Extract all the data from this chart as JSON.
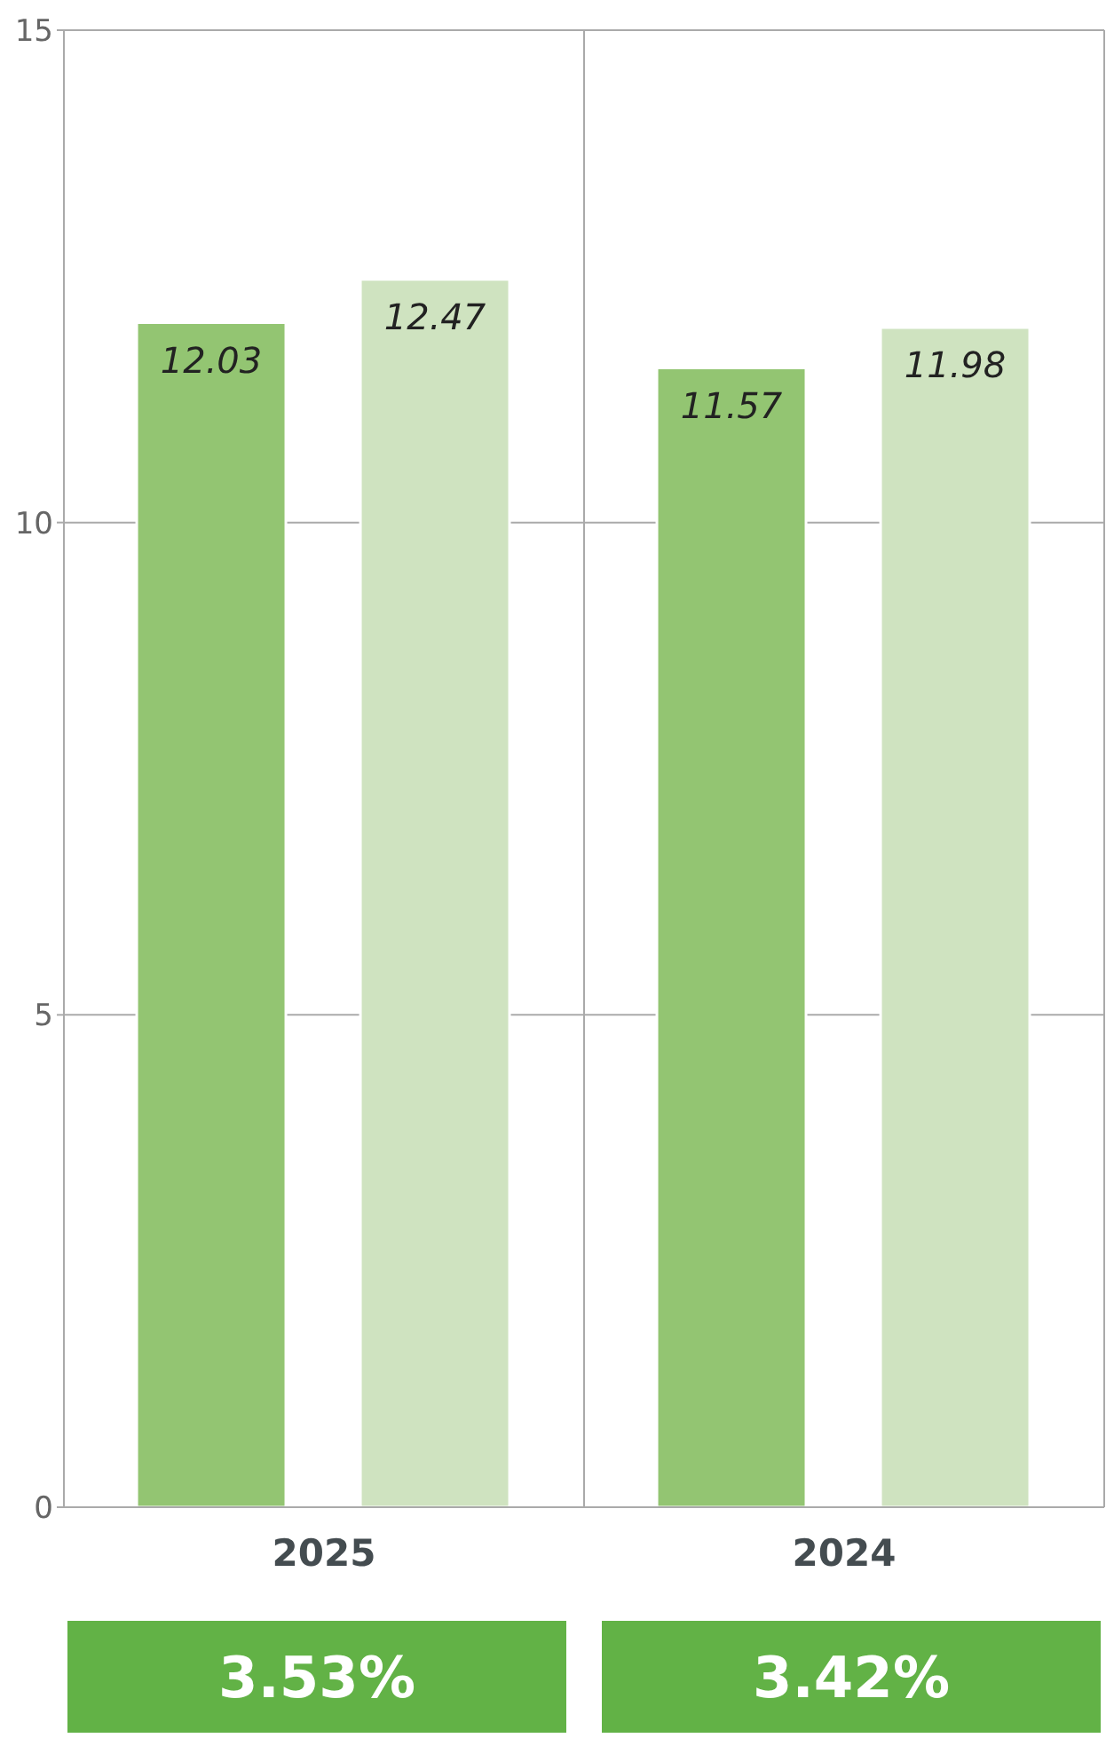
{
  "chart_data": {
    "type": "bar",
    "categories": [
      "2025",
      "2024"
    ],
    "series": [
      {
        "color": "#93c572",
        "values": [
          12.03,
          11.57
        ]
      },
      {
        "color": "#cfe3c0",
        "values": [
          12.47,
          11.98
        ]
      }
    ],
    "ylim": [
      0,
      15
    ],
    "yticks": [
      0,
      5,
      10,
      15
    ],
    "grid": true,
    "data_labels": true,
    "annotations": [
      "3.53%",
      "3.42%"
    ]
  }
}
